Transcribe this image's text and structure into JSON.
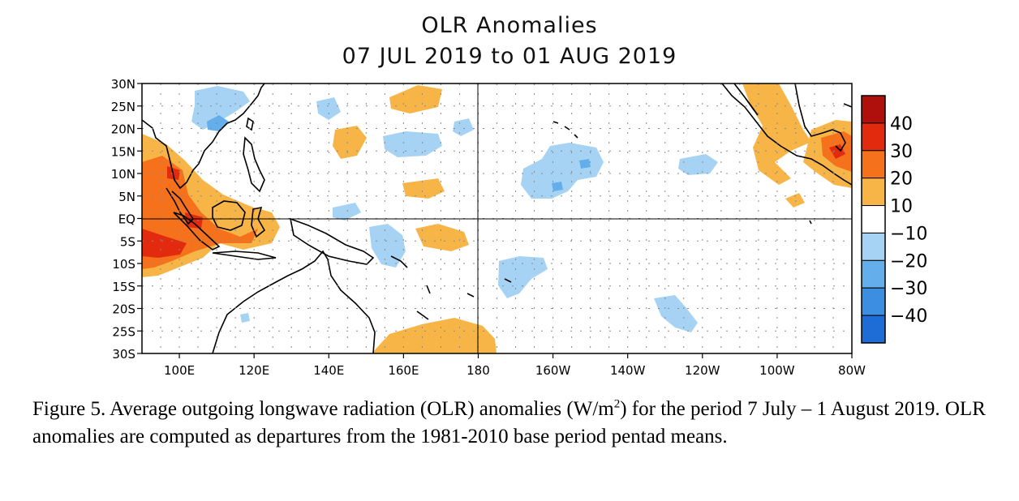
{
  "title": "OLR Anomalies",
  "subtitle": "07 JUL 2019 to 01 AUG 2019",
  "map": {
    "lon_range": [
      "90E",
      "80W"
    ],
    "lat_range": [
      "30S",
      "30N"
    ],
    "lat_labels": [
      "30N",
      "25N",
      "20N",
      "15N",
      "10N",
      "5N",
      "EQ",
      "5S",
      "10S",
      "15S",
      "20S",
      "25S",
      "30S"
    ],
    "lon_labels": [
      "100E",
      "120E",
      "140E",
      "160E",
      "180",
      "160W",
      "140W",
      "120W",
      "100W",
      "80W"
    ],
    "colorbar": {
      "labels": [
        "40",
        "30",
        "20",
        "10",
        "−10",
        "−20",
        "−30",
        "−40"
      ],
      "colors": [
        "#b0100c",
        "#e22a0e",
        "#f5711c",
        "#f7b548",
        "#ffffff",
        "#a6d3f3",
        "#64aeeb",
        "#3b8ee0",
        "#1e6cd6"
      ]
    }
  },
  "caption": {
    "pre": "Figure 5. Average outgoing longwave radiation (OLR) anomalies (W/m",
    "sup": "2",
    "post": ") for the period 7 July – 1 August 2019.  OLR anomalies are computed as departures from the 1981-2010 base period pentad means."
  }
}
